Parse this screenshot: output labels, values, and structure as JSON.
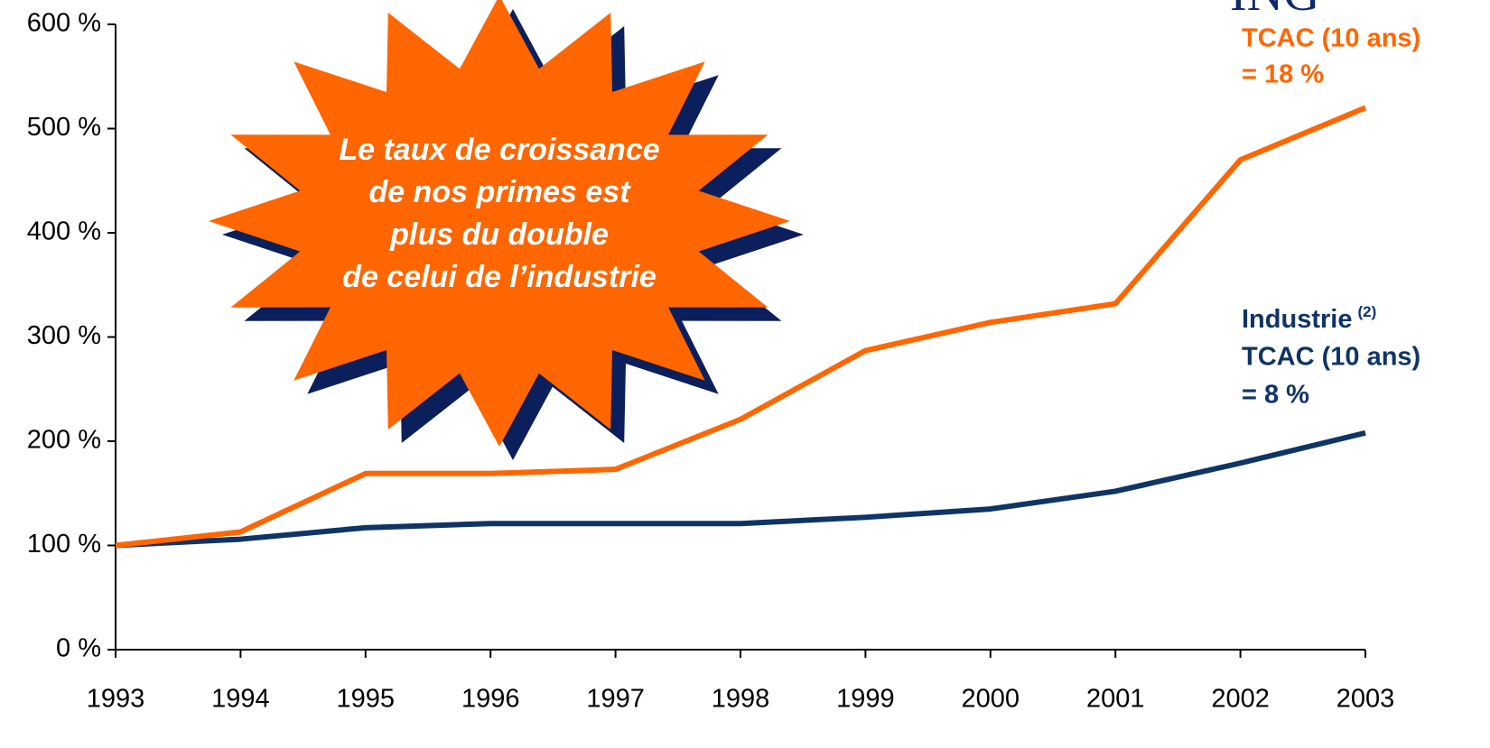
{
  "chart_data": {
    "type": "line",
    "x": [
      1993,
      1994,
      1995,
      1996,
      1997,
      1998,
      1999,
      2000,
      2001,
      2002,
      2003
    ],
    "series": [
      {
        "name": "ING",
        "color": "#ff6600",
        "values": [
          100,
          113,
          169,
          169,
          173,
          221,
          287,
          314,
          332,
          470,
          520
        ]
      },
      {
        "name": "Industrie",
        "color": "#0f3466",
        "values": [
          100,
          106,
          117,
          121,
          121,
          121,
          127,
          135,
          152,
          179,
          208
        ]
      }
    ],
    "xlim": [
      1993,
      2003
    ],
    "ylim": [
      0,
      600
    ],
    "yticks": [
      {
        "value": 0,
        "label": "0 %"
      },
      {
        "value": 100,
        "label": "100 %"
      },
      {
        "value": 200,
        "label": "200 %"
      },
      {
        "value": 300,
        "label": "300 %"
      },
      {
        "value": 400,
        "label": "400 %"
      },
      {
        "value": 500,
        "label": "500 %"
      },
      {
        "value": 600,
        "label": "600 %"
      }
    ],
    "annotations": {
      "ing_rate": [
        "TCAC (10 ans)",
        "= 18 %"
      ],
      "industry_note": "(2)",
      "industry_rate": [
        "TCAC (10 ans)",
        "= 8 %"
      ],
      "callout": [
        "Le taux de croissance",
        "de nos primes est",
        "plus du double",
        "de celui de l’industrie"
      ]
    }
  }
}
